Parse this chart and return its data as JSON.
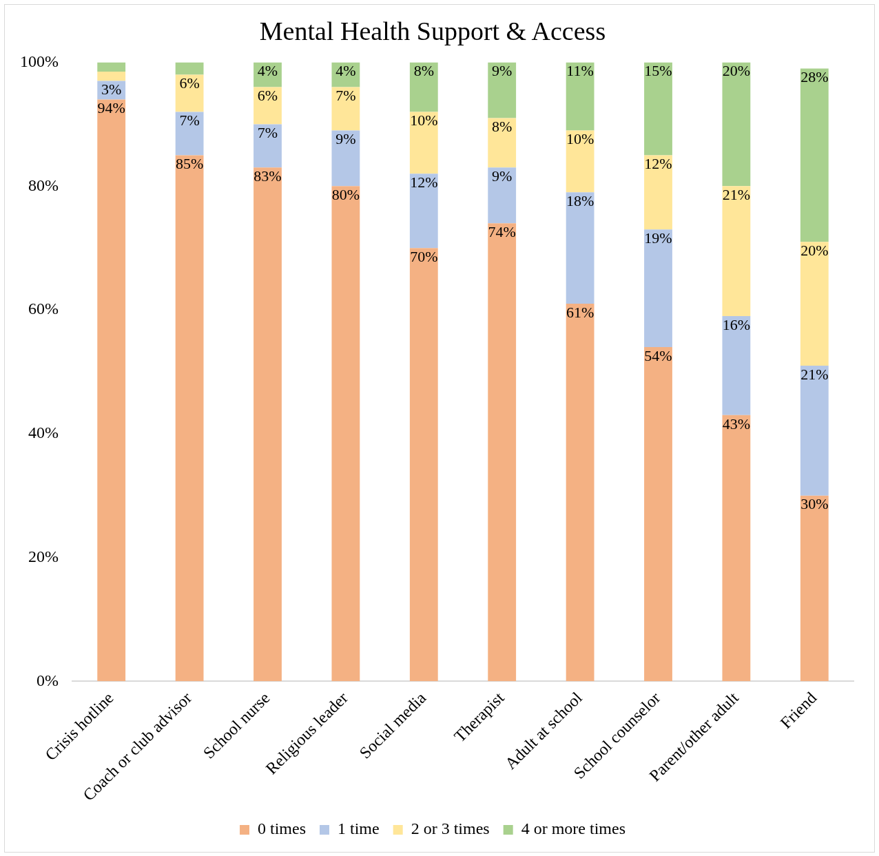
{
  "chart_data": {
    "type": "bar",
    "title": "Mental Health Support & Access",
    "stacked": true,
    "categories": [
      "Crisis hotline",
      "Coach or club advisor",
      "School nurse",
      "Religious leader",
      "Social media",
      "Therapist",
      "Adult at school",
      "School counselor",
      "Parent/other adult",
      "Friend"
    ],
    "series": [
      {
        "name": "0 times",
        "color": "#f4b183",
        "values": [
          94,
          85,
          83,
          80,
          70,
          74,
          61,
          54,
          43,
          30
        ],
        "value_labels": [
          "94%",
          "85%",
          "83%",
          "80%",
          "70%",
          "74%",
          "61%",
          "54%",
          "43%",
          "30%"
        ]
      },
      {
        "name": "1 time",
        "color": "#b4c7e7",
        "values": [
          3,
          7,
          7,
          9,
          12,
          9,
          18,
          19,
          16,
          21
        ],
        "value_labels": [
          "3%",
          "7%",
          "7%",
          "9%",
          "12%",
          "9%",
          "18%",
          "19%",
          "16%",
          "21%"
        ]
      },
      {
        "name": "2 or 3 times",
        "color": "#ffe699",
        "values": [
          1.5,
          6,
          6,
          7,
          10,
          8,
          10,
          12,
          21,
          20
        ],
        "value_labels": [
          null,
          "6%",
          "6%",
          "7%",
          "10%",
          "8%",
          "10%",
          "12%",
          "21%",
          "20%"
        ]
      },
      {
        "name": "4 or more times",
        "color": "#a9d18e",
        "values": [
          1.5,
          2,
          4,
          4,
          8,
          9,
          11,
          15,
          20,
          28
        ],
        "value_labels": [
          null,
          null,
          "4%",
          "4%",
          "8%",
          "9%",
          "11%",
          "15%",
          "20%",
          "28%"
        ]
      }
    ],
    "ylim": [
      0,
      100
    ],
    "yticks": [
      {
        "value": 0,
        "label": "0%"
      },
      {
        "value": 20,
        "label": "20%"
      },
      {
        "value": 40,
        "label": "40%"
      },
      {
        "value": 60,
        "label": "60%"
      },
      {
        "value": 80,
        "label": "80%"
      },
      {
        "value": 100,
        "label": "100%"
      }
    ],
    "grid": false,
    "legend": "bottom"
  }
}
